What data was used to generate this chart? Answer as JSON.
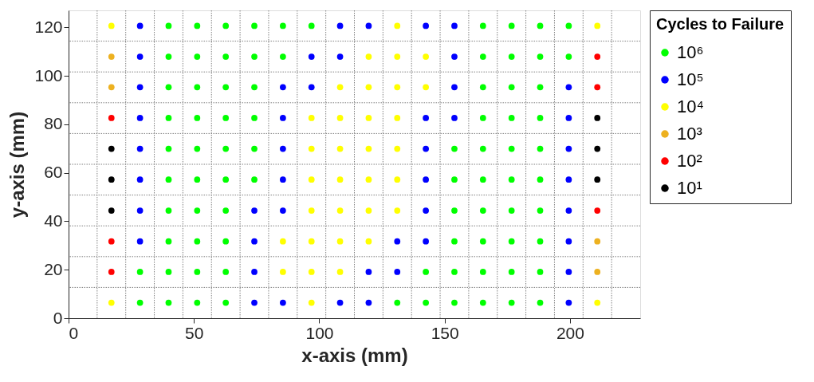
{
  "chart_data": {
    "type": "scatter",
    "xlabel": "x-axis (mm)",
    "ylabel": "y-axis (mm)",
    "legend_title": "Cycles to Failure",
    "legend": "right",
    "marker": "circle",
    "grid": false,
    "xlim": [
      0,
      228
    ],
    "ylim": [
      0,
      127
    ],
    "xticks": [
      0,
      50,
      100,
      150,
      200
    ],
    "yticks": [
      0,
      20,
      40,
      60,
      80,
      100,
      120
    ],
    "series": [
      {
        "name": "10⁶",
        "color": "#00ff00",
        "x": [
          39.9,
          51.3,
          62.7,
          74.1,
          85.5,
          96.9,
          165.3,
          176.7,
          188.1,
          199.5,
          39.9,
          51.3,
          62.7,
          74.1,
          85.5,
          165.3,
          176.7,
          188.1,
          199.5,
          39.9,
          51.3,
          62.7,
          74.1,
          165.3,
          176.7,
          188.1,
          39.9,
          51.3,
          62.7,
          74.1,
          165.3,
          176.7,
          188.1,
          39.9,
          51.3,
          62.7,
          74.1,
          153.9,
          165.3,
          176.7,
          188.1,
          39.9,
          51.3,
          62.7,
          74.1,
          153.9,
          165.3,
          176.7,
          188.1,
          39.9,
          51.3,
          62.7,
          153.9,
          165.3,
          176.7,
          188.1,
          39.9,
          51.3,
          62.7,
          153.9,
          165.3,
          176.7,
          188.1,
          28.5,
          39.9,
          51.3,
          62.7,
          142.5,
          153.9,
          165.3,
          176.7,
          188.1,
          28.5,
          39.9,
          51.3,
          62.7,
          131.1,
          142.5,
          153.9,
          165.3,
          176.7,
          188.1
        ],
        "values": [
          120.6,
          120.6,
          120.6,
          120.6,
          120.6,
          120.6,
          120.6,
          120.6,
          120.6,
          120.6,
          107.9,
          107.9,
          107.9,
          107.9,
          107.9,
          107.9,
          107.9,
          107.9,
          107.9,
          95.3,
          95.3,
          95.3,
          95.3,
          95.3,
          95.3,
          95.3,
          82.6,
          82.6,
          82.6,
          82.6,
          82.6,
          82.6,
          82.6,
          69.9,
          69.9,
          69.9,
          69.9,
          69.9,
          69.9,
          69.9,
          69.9,
          57.2,
          57.2,
          57.2,
          57.2,
          57.2,
          57.2,
          57.2,
          57.2,
          44.4,
          44.4,
          44.4,
          44.4,
          44.4,
          44.4,
          44.4,
          31.7,
          31.7,
          31.7,
          31.7,
          31.7,
          31.7,
          31.7,
          19.1,
          19.1,
          19.1,
          19.1,
          19.1,
          19.1,
          19.1,
          19.1,
          19.1,
          6.4,
          6.4,
          6.4,
          6.4,
          6.4,
          6.4,
          6.4,
          6.4,
          6.4,
          6.4
        ]
      },
      {
        "name": "10⁵",
        "color": "#0000ff",
        "x": [
          28.5,
          108.3,
          119.7,
          142.5,
          153.9,
          28.5,
          96.9,
          108.3,
          153.9,
          28.5,
          85.5,
          96.9,
          153.9,
          199.5,
          28.5,
          85.5,
          142.5,
          153.9,
          199.5,
          28.5,
          85.5,
          142.5,
          199.5,
          28.5,
          85.5,
          142.5,
          199.5,
          28.5,
          74.1,
          85.5,
          142.5,
          199.5,
          28.5,
          74.1,
          131.1,
          142.5,
          199.5,
          74.1,
          119.7,
          131.1,
          199.5,
          74.1,
          85.5,
          108.3,
          119.7,
          199.5
        ],
        "values": [
          120.6,
          120.6,
          120.6,
          120.6,
          120.6,
          107.9,
          107.9,
          107.9,
          107.9,
          95.3,
          95.3,
          95.3,
          95.3,
          95.3,
          82.6,
          82.6,
          82.6,
          82.6,
          82.6,
          69.9,
          69.9,
          69.9,
          69.9,
          57.2,
          57.2,
          57.2,
          57.2,
          44.4,
          44.4,
          44.4,
          44.4,
          44.4,
          31.7,
          31.7,
          31.7,
          31.7,
          31.7,
          19.1,
          19.1,
          19.1,
          19.1,
          6.4,
          6.4,
          6.4,
          6.4,
          6.4
        ]
      },
      {
        "name": "10⁴",
        "color": "#ffff00",
        "x": [
          17.1,
          131.1,
          210.9,
          119.7,
          131.1,
          142.5,
          108.3,
          119.7,
          131.1,
          142.5,
          96.9,
          108.3,
          119.7,
          131.1,
          96.9,
          108.3,
          119.7,
          131.1,
          96.9,
          108.3,
          119.7,
          131.1,
          96.9,
          108.3,
          119.7,
          131.1,
          85.5,
          96.9,
          108.3,
          119.7,
          85.5,
          96.9,
          108.3,
          17.1,
          96.9,
          210.9
        ],
        "values": [
          120.6,
          120.6,
          120.6,
          107.9,
          107.9,
          107.9,
          95.3,
          95.3,
          95.3,
          95.3,
          82.6,
          82.6,
          82.6,
          82.6,
          69.9,
          69.9,
          69.9,
          69.9,
          57.2,
          57.2,
          57.2,
          57.2,
          44.4,
          44.4,
          44.4,
          44.4,
          31.7,
          31.7,
          31.7,
          31.7,
          19.1,
          19.1,
          19.1,
          6.4,
          6.4,
          6.4
        ]
      },
      {
        "name": "10³",
        "color": "#edb120",
        "x": [
          17.1,
          17.1,
          210.9,
          210.9
        ],
        "values": [
          107.9,
          95.3,
          31.7,
          19.1
        ]
      },
      {
        "name": "10²",
        "color": "#ff0000",
        "x": [
          210.9,
          210.9,
          17.1,
          210.9,
          17.1,
          17.1
        ],
        "values": [
          107.9,
          95.3,
          82.6,
          44.4,
          31.7,
          19.1
        ]
      },
      {
        "name": "10¹",
        "color": "#000000",
        "x": [
          210.9,
          17.1,
          210.9,
          17.1,
          210.9,
          17.1
        ],
        "values": [
          82.6,
          69.9,
          69.9,
          57.2,
          57.2,
          44.4
        ]
      }
    ],
    "ref_lines": [
      {
        "axis": "x",
        "value": 11.4,
        "color": "#808080",
        "line_style": "dotted"
      },
      {
        "axis": "x",
        "value": 22.8,
        "color": "#808080",
        "line_style": "dotted"
      },
      {
        "axis": "x",
        "value": 34.2,
        "color": "#808080",
        "line_style": "dotted"
      },
      {
        "axis": "x",
        "value": 45.6,
        "color": "#808080",
        "line_style": "dotted"
      },
      {
        "axis": "x",
        "value": 57.0,
        "color": "#808080",
        "line_style": "dotted"
      },
      {
        "axis": "x",
        "value": 68.4,
        "color": "#808080",
        "line_style": "dotted"
      },
      {
        "axis": "x",
        "value": 79.8,
        "color": "#808080",
        "line_style": "dotted"
      },
      {
        "axis": "x",
        "value": 91.2,
        "color": "#808080",
        "line_style": "dotted"
      },
      {
        "axis": "x",
        "value": 102.6,
        "color": "#808080",
        "line_style": "dotted"
      },
      {
        "axis": "x",
        "value": 114.0,
        "color": "#808080",
        "line_style": "dotted"
      },
      {
        "axis": "x",
        "value": 125.4,
        "color": "#808080",
        "line_style": "dotted"
      },
      {
        "axis": "x",
        "value": 136.8,
        "color": "#808080",
        "line_style": "dotted"
      },
      {
        "axis": "x",
        "value": 148.2,
        "color": "#808080",
        "line_style": "dotted"
      },
      {
        "axis": "x",
        "value": 159.6,
        "color": "#808080",
        "line_style": "dotted"
      },
      {
        "axis": "x",
        "value": 171.0,
        "color": "#808080",
        "line_style": "dotted"
      },
      {
        "axis": "x",
        "value": 182.4,
        "color": "#808080",
        "line_style": "dotted"
      },
      {
        "axis": "x",
        "value": 193.8,
        "color": "#808080",
        "line_style": "dotted"
      },
      {
        "axis": "x",
        "value": 205.2,
        "color": "#808080",
        "line_style": "dotted"
      },
      {
        "axis": "x",
        "value": 216.6,
        "color": "#808080",
        "line_style": "dotted"
      },
      {
        "axis": "y",
        "value": 12.7,
        "color": "#808080",
        "line_style": "dotted"
      },
      {
        "axis": "y",
        "value": 25.4,
        "color": "#808080",
        "line_style": "dotted"
      },
      {
        "axis": "y",
        "value": 38.1,
        "color": "#808080",
        "line_style": "dotted"
      },
      {
        "axis": "y",
        "value": 50.8,
        "color": "#808080",
        "line_style": "dotted"
      },
      {
        "axis": "y",
        "value": 63.5,
        "color": "#808080",
        "line_style": "dotted"
      },
      {
        "axis": "y",
        "value": 76.2,
        "color": "#808080",
        "line_style": "dotted"
      },
      {
        "axis": "y",
        "value": 88.9,
        "color": "#808080",
        "line_style": "dotted"
      },
      {
        "axis": "y",
        "value": 101.6,
        "color": "#808080",
        "line_style": "dotted"
      },
      {
        "axis": "y",
        "value": 114.3,
        "color": "#808080",
        "line_style": "dotted"
      }
    ]
  }
}
